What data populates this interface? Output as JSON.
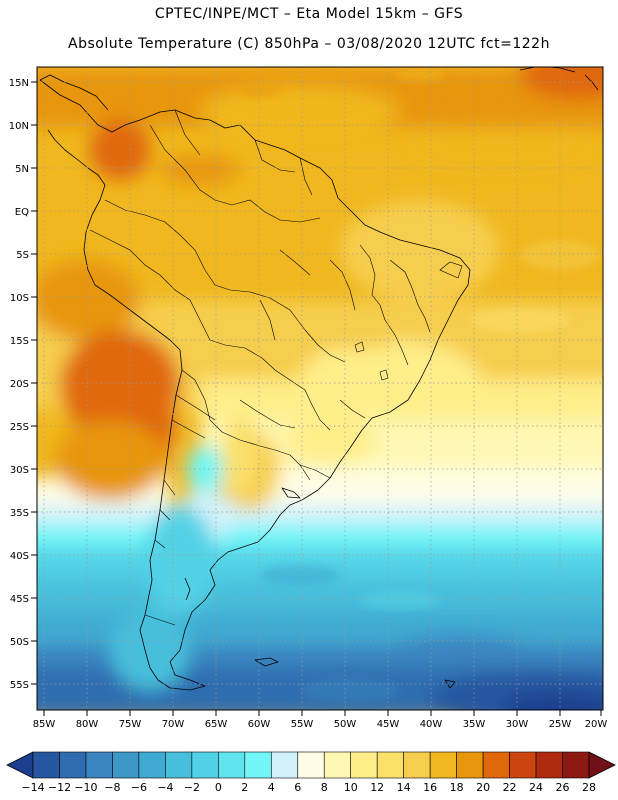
{
  "title": {
    "line1": "CPTEC/INPE/MCT –   Eta Model 15km – GFS",
    "line2": "Absolute Temperature (C) 850hPa – 03/08/2020 12UTC fct=122h"
  },
  "axes": {
    "lat_labels": [
      "15N",
      "10N",
      "5N",
      "EQ",
      "5S",
      "10S",
      "15S",
      "20S",
      "25S",
      "30S",
      "35S",
      "40S",
      "45S",
      "50S",
      "55S"
    ],
    "lon_labels": [
      "85W",
      "80W",
      "75W",
      "70W",
      "65W",
      "60W",
      "55W",
      "50W",
      "45W",
      "40W",
      "35W",
      "30W",
      "25W",
      "20W"
    ]
  },
  "colorbar": {
    "labels": [
      "-14",
      "-12",
      "-10",
      "-8",
      "-6",
      "-4",
      "-2",
      "0",
      "2",
      "4",
      "6",
      "8",
      "10",
      "12",
      "14",
      "16",
      "18",
      "20",
      "22",
      "24",
      "26",
      "28"
    ],
    "colors": [
      "#1d3f8f",
      "#2756a0",
      "#2f6db0",
      "#3a84c0",
      "#3d98c8",
      "#40abd2",
      "#47bfdc",
      "#52d2e6",
      "#62e4ee",
      "#72f6f8",
      "#d2f2fb",
      "#fffde6",
      "#fff8b4",
      "#ffee8a",
      "#fbe06a",
      "#f6ce4e",
      "#f0b71e",
      "#e8960c",
      "#e06808",
      "#cc4410",
      "#b02a10",
      "#8c1a12",
      "#701018"
    ]
  }
}
